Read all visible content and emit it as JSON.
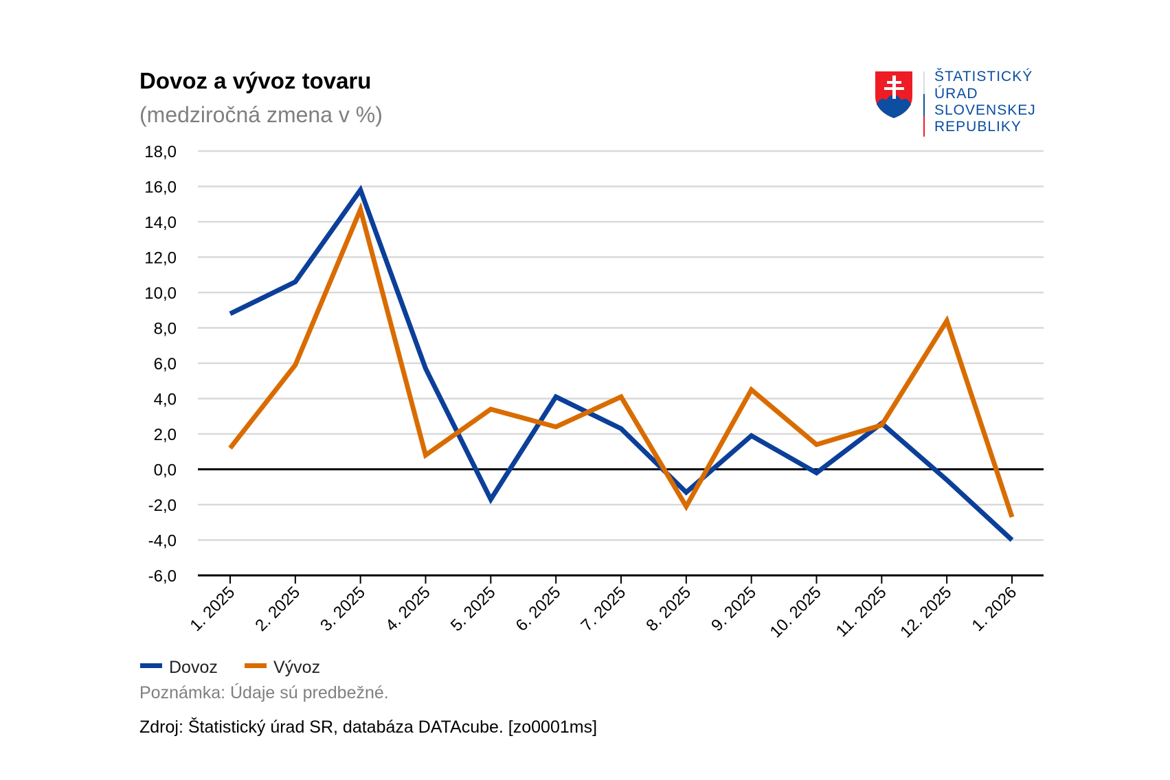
{
  "chart_data": {
    "type": "line",
    "title": "Dovoz a vývoz tovaru",
    "subtitle": "(medziročná zmena v %)",
    "categories": [
      "1. 2025",
      "2. 2025",
      "3. 2025",
      "4. 2025",
      "5. 2025",
      "6. 2025",
      "7. 2025",
      "8. 2025",
      "9. 2025",
      "10. 2025",
      "11. 2025",
      "12. 2025",
      "1. 2026"
    ],
    "series": [
      {
        "name": "Dovoz",
        "color": "#0b3f99",
        "values": [
          8.8,
          10.6,
          15.8,
          5.7,
          -1.7,
          4.1,
          2.3,
          -1.3,
          1.9,
          -0.2,
          2.6,
          -0.6,
          -4.0
        ]
      },
      {
        "name": "Vývoz",
        "color": "#d96c00",
        "values": [
          1.2,
          5.9,
          14.7,
          0.8,
          3.4,
          2.4,
          4.1,
          -2.1,
          4.5,
          1.4,
          2.5,
          8.4,
          -2.7
        ]
      }
    ],
    "ylim": [
      -6,
      18
    ],
    "yticks": [
      "18,0",
      "16,0",
      "14,0",
      "12,0",
      "10,0",
      "8,0",
      "6,0",
      "4,0",
      "2,0",
      "0,0",
      "-2,0",
      "-4,0",
      "-6,0"
    ],
    "grid": true,
    "legend_position": "bottom-left",
    "note": "Poznámka: Údaje sú predbežné.",
    "source": "Zdroj: Štatistický úrad SR, databáza DATAcube. [zo0001ms]"
  },
  "logo": {
    "lines": [
      "ŠTATISTICKÝ",
      "ÚRAD",
      "SLOVENSKEJ",
      "REPUBLIKY"
    ],
    "colors": {
      "red": "#ee1c25",
      "blue": "#0b4ea2"
    }
  }
}
